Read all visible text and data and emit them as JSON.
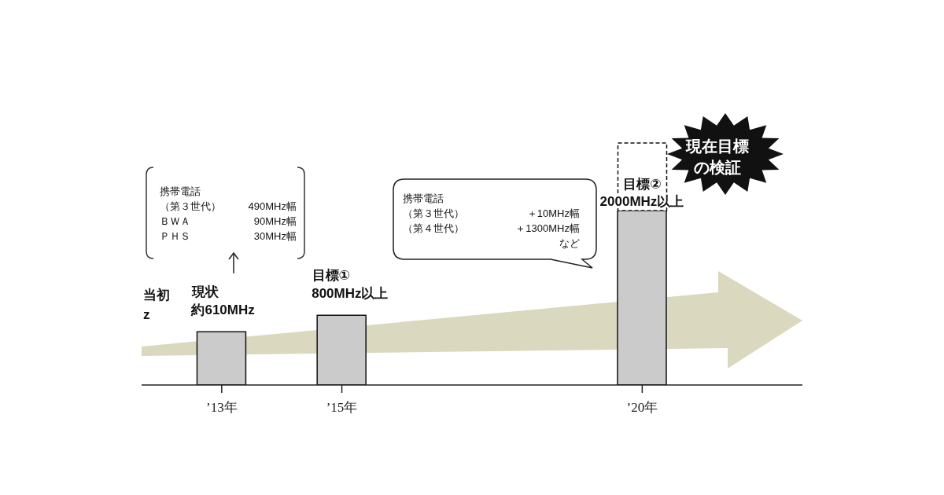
{
  "chart_data": {
    "type": "bar",
    "x": [
      "2013",
      "2015",
      "2020"
    ],
    "values": [
      610,
      800,
      2000
    ],
    "color": "#cbcbcb",
    "value_labels": [
      "約610MHz",
      "800MHz以上",
      "2000MHz以上"
    ],
    "xlim": [
      "2011-09",
      "2022-09"
    ],
    "xticks": [
      {
        "value": "2013",
        "label": "’13年"
      },
      {
        "value": "2015",
        "label": "’15年"
      },
      {
        "value": "2020",
        "label": "’20年"
      }
    ],
    "tick_labels": "x",
    "annotations": [
      "携帯電話",
      "（第３世代）",
      "490MHz幅",
      "ＢＷＡ",
      "90MHz幅",
      "ＰＨＳ",
      "30MHz幅",
      "携帯電話",
      "（第３世代）",
      "＋10MHz幅",
      "（第４世代）",
      "＋1300MHz幅",
      "など",
      "現在目標",
      "の検証",
      "当初",
      "z",
      {
        "text": "現状",
        "x": "2013",
        "y": 610
      },
      {
        "text": "目標①",
        "x": "2015",
        "y": 800
      },
      {
        "text": "目標②",
        "x": "2020",
        "y": 2000
      }
    ]
  }
}
